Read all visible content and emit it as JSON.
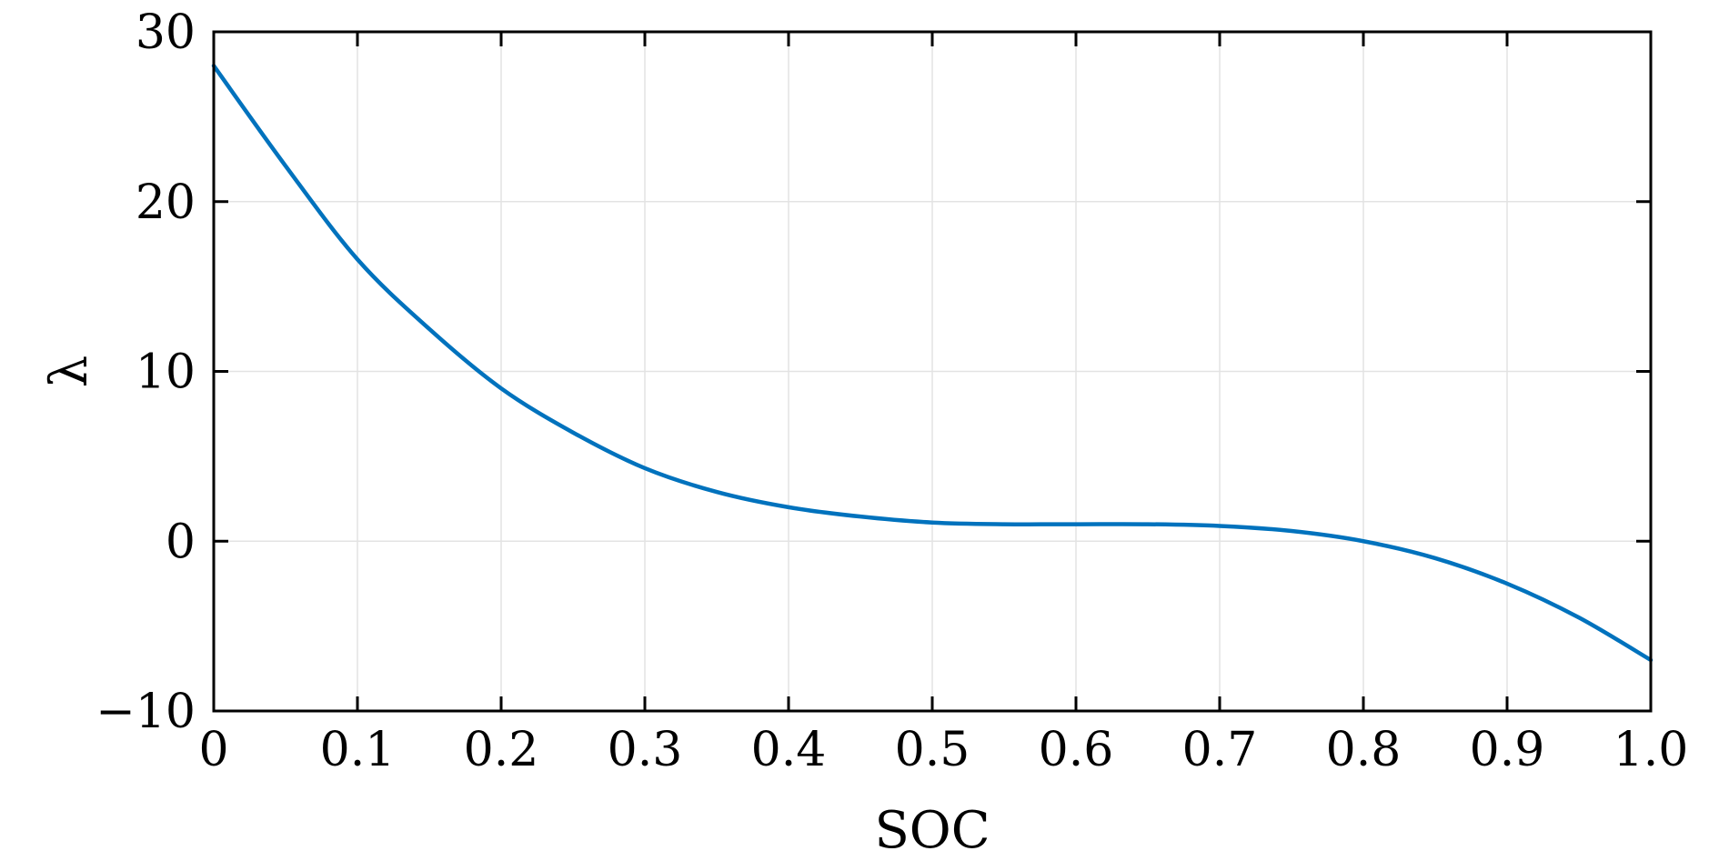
{
  "chart_data": {
    "type": "line",
    "title": "",
    "xlabel": "SOC",
    "ylabel": "λ",
    "xlim": [
      0,
      1.0
    ],
    "ylim": [
      -10,
      30
    ],
    "x_ticks": [
      0,
      0.1,
      0.2,
      0.3,
      0.4,
      0.5,
      0.6,
      0.7,
      0.8,
      0.9,
      1.0
    ],
    "x_tick_labels": [
      "0",
      "0.1",
      "0.2",
      "0.3",
      "0.4",
      "0.5",
      "0.6",
      "0.7",
      "0.8",
      "0.9",
      "1.0"
    ],
    "y_ticks": [
      -10,
      0,
      10,
      20,
      30
    ],
    "y_tick_labels": [
      "−10",
      "0",
      "10",
      "20",
      "30"
    ],
    "grid": true,
    "series": [
      {
        "color": "#0072BD",
        "x": [
          0,
          0.05,
          0.1,
          0.15,
          0.2,
          0.25,
          0.3,
          0.35,
          0.4,
          0.45,
          0.5,
          0.55,
          0.6,
          0.65,
          0.7,
          0.75,
          0.8,
          0.85,
          0.9,
          0.95,
          1.0
        ],
        "y": [
          28.0,
          22.1,
          16.6,
          12.5,
          9.0,
          6.4,
          4.3,
          2.9,
          2.0,
          1.45,
          1.1,
          1.0,
          1.0,
          1.0,
          0.9,
          0.6,
          0.0,
          -1.0,
          -2.5,
          -4.5,
          -7.0
        ]
      }
    ]
  }
}
